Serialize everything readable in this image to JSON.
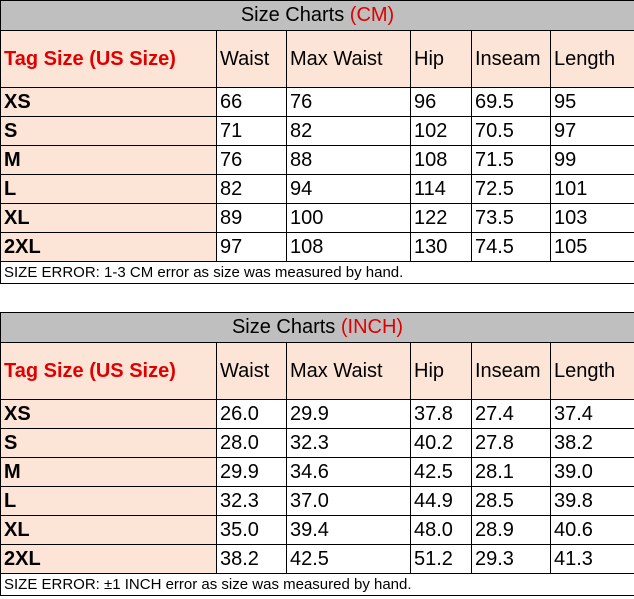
{
  "tables": [
    {
      "title": "Size Charts ",
      "unit": "(CM)",
      "headers": [
        "Tag Size (US Size)",
        "Waist",
        "Max Waist",
        "Hip",
        "Inseam",
        "Length"
      ],
      "rows": [
        [
          "XS",
          "66",
          "76",
          "96",
          "69.5",
          "95"
        ],
        [
          "S",
          "71",
          "82",
          "102",
          "70.5",
          "97"
        ],
        [
          "M",
          "76",
          "88",
          "108",
          "71.5",
          "99"
        ],
        [
          "L",
          "82",
          "94",
          "114",
          "72.5",
          "101"
        ],
        [
          "XL",
          "89",
          "100",
          "122",
          "73.5",
          "103"
        ],
        [
          "2XL",
          "97",
          "108",
          "130",
          "74.5",
          "105"
        ]
      ],
      "note": "SIZE ERROR: 1-3 CM error as size was measured by hand."
    },
    {
      "title": "Size Charts ",
      "unit": "(INCH)",
      "headers": [
        "Tag Size (US Size)",
        "Waist",
        "Max Waist",
        "Hip",
        "Inseam",
        "Length"
      ],
      "rows": [
        [
          "XS",
          "26.0",
          "29.9",
          "37.8",
          "27.4",
          "37.4"
        ],
        [
          "S",
          "28.0",
          "32.3",
          "40.2",
          "27.8",
          "38.2"
        ],
        [
          "M",
          "29.9",
          "34.6",
          "42.5",
          "28.1",
          "39.0"
        ],
        [
          "L",
          "32.3",
          "37.0",
          "44.9",
          "28.5",
          "39.8"
        ],
        [
          "XL",
          "35.0",
          "39.4",
          "48.0",
          "28.9",
          "40.6"
        ],
        [
          "2XL",
          "38.2",
          "42.5",
          "51.2",
          "29.3",
          "41.3"
        ]
      ],
      "note": "SIZE ERROR: ±1 INCH error as size was measured by hand."
    }
  ],
  "colors": {
    "accent": "#e00000",
    "header_bg": "#fce4d6",
    "title_bg": "#bfbfbf"
  }
}
